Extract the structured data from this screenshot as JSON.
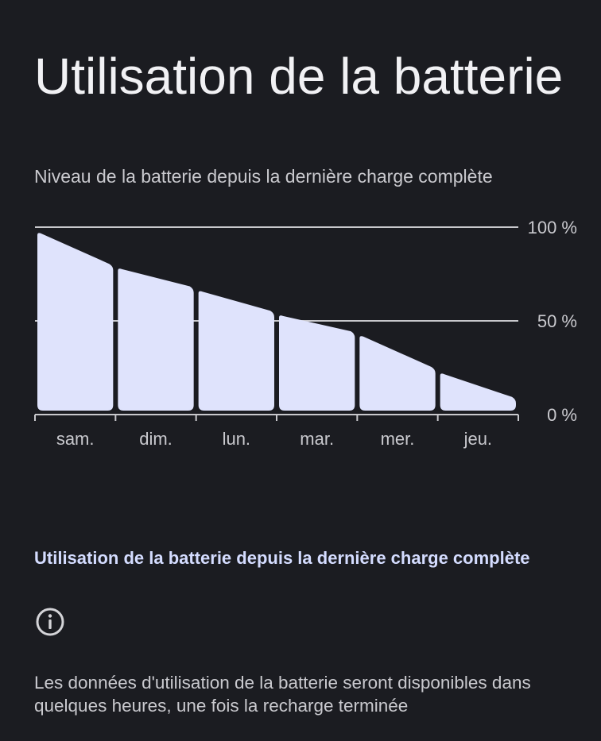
{
  "page": {
    "title": "Utilisation de la batterie"
  },
  "chart_section": {
    "subtitle": "Niveau de la batterie depuis la dernière charge complète"
  },
  "chart_data": {
    "type": "area",
    "title": "",
    "xlabel": "",
    "ylabel": "",
    "categories": [
      "sam.",
      "dim.",
      "lun.",
      "mar.",
      "mer.",
      "jeu."
    ],
    "y_tick_labels": [
      "100 %",
      "50 %",
      "0 %"
    ],
    "y_ticks": [
      100,
      50,
      0
    ],
    "ylim": [
      0,
      100
    ],
    "grid": true,
    "series": [
      {
        "segments": [
          {
            "category": "sam.",
            "start": 97,
            "end": 80
          },
          {
            "category": "dim.",
            "start": 78,
            "end": 68
          },
          {
            "category": "lun.",
            "start": 66,
            "end": 55
          },
          {
            "category": "mar.",
            "start": 53,
            "end": 44
          },
          {
            "category": "mer.",
            "start": 42,
            "end": 25
          },
          {
            "category": "jeu.",
            "start": 22,
            "end": 9
          }
        ]
      }
    ],
    "fill_color": "#dfe3fc",
    "grid_color": "#c8c8cc"
  },
  "usage_section": {
    "header": "Utilisation de la batterie depuis la dernière charge complète",
    "icon": "info-icon",
    "message": "Les données d'utilisation de la batterie seront disponibles dans quelques heures, une fois la recharge terminée"
  }
}
